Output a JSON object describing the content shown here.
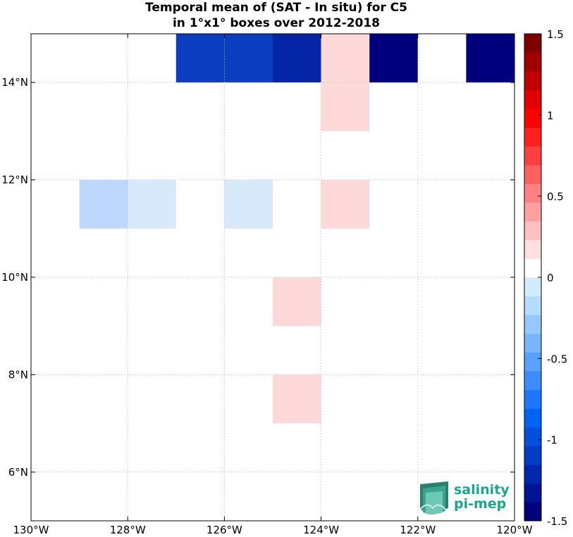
{
  "chart_data": {
    "type": "heatmap",
    "title": [
      "Temporal mean of (SAT - In situ) for C5",
      "in 1°x1° boxes over 2012-2018"
    ],
    "xlim": [
      -130,
      -120
    ],
    "ylim": [
      5,
      15
    ],
    "x_ticks": [
      {
        "value": -130,
        "label": "130°W"
      },
      {
        "value": -128,
        "label": "128°W"
      },
      {
        "value": -126,
        "label": "126°W"
      },
      {
        "value": -124,
        "label": "124°W"
      },
      {
        "value": -122,
        "label": "122°W"
      },
      {
        "value": -120,
        "label": "120°W"
      }
    ],
    "y_ticks": [
      {
        "value": 6,
        "label": "6°N"
      },
      {
        "value": 8,
        "label": "8°N"
      },
      {
        "value": 10,
        "label": "10°N"
      },
      {
        "value": 12,
        "label": "12°N"
      },
      {
        "value": 14,
        "label": "14°N"
      }
    ],
    "grid": true,
    "colorbar": {
      "min": -1.5,
      "max": 1.5,
      "ticks": [
        {
          "value": 1.5,
          "label": "1.5"
        },
        {
          "value": 1.0,
          "label": "1"
        },
        {
          "value": 0.5,
          "label": "0.5"
        },
        {
          "value": 0.0,
          "label": "0"
        },
        {
          "value": -0.5,
          "label": "-0.5"
        },
        {
          "value": -1.0,
          "label": "-1"
        },
        {
          "value": -1.5,
          "label": "-1.5"
        }
      ],
      "colors": [
        "#00007f",
        "#001496",
        "#0028ad",
        "#003cc4",
        "#0050db",
        "#0064f2",
        "#1e78ff",
        "#3c8cff",
        "#5aa0ff",
        "#78b4ff",
        "#96c8ff",
        "#b4dcff",
        "#d2ebff",
        "#ffffff",
        "#ffe0e0",
        "#ffc0c0",
        "#ffa0a0",
        "#ff8080",
        "#ff6060",
        "#ff4040",
        "#ff2020",
        "#ff0000",
        "#e00000",
        "#c00000",
        "#a00000",
        "#7f0000"
      ]
    },
    "cells": [
      {
        "lon": -127,
        "lat": 14,
        "value": -1.2,
        "color": "#0a3dbf"
      },
      {
        "lon": -126,
        "lat": 14,
        "value": -1.2,
        "color": "#0a3dbf"
      },
      {
        "lon": -125,
        "lat": 14,
        "value": -1.3,
        "color": "#0426a6"
      },
      {
        "lon": -124,
        "lat": 14,
        "value": 0.15,
        "color": "#ffd9d9"
      },
      {
        "lon": -123,
        "lat": 14,
        "value": -1.5,
        "color": "#00007f"
      },
      {
        "lon": -121,
        "lat": 14,
        "value": -1.5,
        "color": "#00007f"
      },
      {
        "lon": -124,
        "lat": 13,
        "value": 0.15,
        "color": "#ffd9d9"
      },
      {
        "lon": -129,
        "lat": 11,
        "value": -0.3,
        "color": "#bdd8fc"
      },
      {
        "lon": -128,
        "lat": 11,
        "value": -0.15,
        "color": "#d9e9fc"
      },
      {
        "lon": -126,
        "lat": 11,
        "value": -0.15,
        "color": "#d9e9fc"
      },
      {
        "lon": -124,
        "lat": 11,
        "value": 0.15,
        "color": "#ffd9d9"
      },
      {
        "lon": -125,
        "lat": 9,
        "value": 0.15,
        "color": "#ffd9d9"
      },
      {
        "lon": -125,
        "lat": 7,
        "value": 0.15,
        "color": "#ffd9d9"
      }
    ]
  },
  "logo": {
    "line1": "salinity",
    "line2": "pi-mep"
  }
}
